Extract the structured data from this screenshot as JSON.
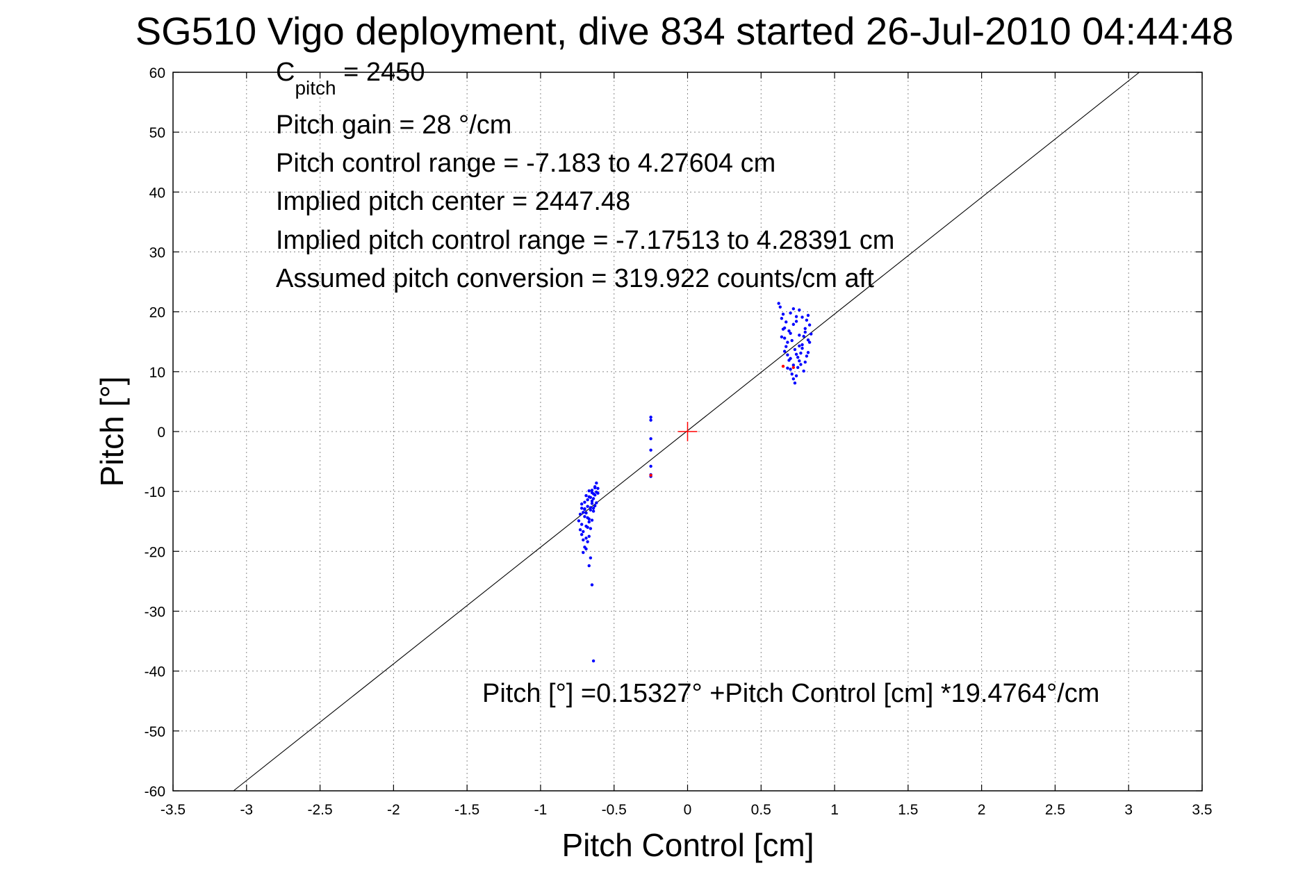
{
  "chart_data": {
    "type": "scatter",
    "title": "SG510 Vigo deployment, dive 834 started 26-Jul-2010 04:44:48",
    "xlabel": "Pitch Control [cm]",
    "ylabel": "Pitch [°]",
    "xlim": [
      -3.5,
      3.5
    ],
    "ylim": [
      -60,
      60
    ],
    "xticks": [
      -3.5,
      -3,
      -2.5,
      -2,
      -1.5,
      -1,
      -0.5,
      0,
      0.5,
      1,
      1.5,
      2,
      2.5,
      3,
      3.5
    ],
    "xtick_labels": [
      "-3.5",
      "-3",
      "-2.5",
      "-2",
      "-1.5",
      "-1",
      "-0.5",
      "0",
      "0.5",
      "1",
      "1.5",
      "2",
      "2.5",
      "3",
      "3.5"
    ],
    "yticks": [
      60,
      50,
      40,
      30,
      20,
      10,
      0,
      -10,
      -20,
      -30,
      -40,
      -50,
      -60
    ],
    "ytick_labels": [
      "60",
      "50",
      "40",
      "30",
      "20",
      "10",
      "0",
      "-10",
      "-20",
      "-30",
      "-40",
      "-50",
      "-60"
    ],
    "grid": true,
    "annotations": {
      "c_pitch_prefix": "C",
      "c_pitch_sub": "pitch",
      "c_pitch_value": " = 2450",
      "lines": [
        "Pitch gain = 28 °/cm",
        "Pitch control range = -7.183 to 4.27604 cm",
        "Implied pitch center = 2447.48",
        "Implied pitch control range = -7.17513 to 4.28391 cm",
        "Assumed pitch conversion = 319.922 counts/cm aft"
      ],
      "fit_equation": "Pitch [°] =0.15327° +Pitch Control [cm] *19.4764°/cm"
    },
    "fit_line": {
      "intercept": 0.15327,
      "slope": 19.4764
    },
    "center_marker": {
      "x": 0,
      "y": 0,
      "color": "#ff0000"
    },
    "series": [
      {
        "color": "#0000ff",
        "marker": "dot",
        "points": [
          [
            -0.72,
            -12.1
          ],
          [
            -0.71,
            -13.5
          ],
          [
            -0.7,
            -14.2
          ],
          [
            -0.69,
            -15.8
          ],
          [
            -0.68,
            -11.4
          ],
          [
            -0.67,
            -10.9
          ],
          [
            -0.66,
            -12.7
          ],
          [
            -0.65,
            -9.8
          ],
          [
            -0.64,
            -10.4
          ],
          [
            -0.63,
            -9.2
          ],
          [
            -0.62,
            -8.6
          ],
          [
            -0.61,
            -9.5
          ],
          [
            -0.73,
            -16.4
          ],
          [
            -0.72,
            -17.2
          ],
          [
            -0.71,
            -18.1
          ],
          [
            -0.7,
            -19.3
          ],
          [
            -0.69,
            -17.8
          ],
          [
            -0.68,
            -16.0
          ],
          [
            -0.67,
            -14.6
          ],
          [
            -0.66,
            -13.1
          ],
          [
            -0.65,
            -12.0
          ],
          [
            -0.64,
            -11.2
          ],
          [
            -0.63,
            -10.6
          ],
          [
            -0.62,
            -10.1
          ],
          [
            -0.74,
            -14.9
          ],
          [
            -0.73,
            -13.8
          ],
          [
            -0.72,
            -15.5
          ],
          [
            -0.71,
            -16.7
          ],
          [
            -0.7,
            -12.9
          ],
          [
            -0.69,
            -13.6
          ],
          [
            -0.68,
            -14.4
          ],
          [
            -0.67,
            -15.1
          ],
          [
            -0.66,
            -16.2
          ],
          [
            -0.65,
            -14.8
          ],
          [
            -0.64,
            -13.3
          ],
          [
            -0.63,
            -12.4
          ],
          [
            -0.71,
            -20.2
          ],
          [
            -0.69,
            -19.6
          ],
          [
            -0.68,
            -18.4
          ],
          [
            -0.67,
            -17.5
          ],
          [
            -0.66,
            -21.1
          ],
          [
            -0.7,
            -11.8
          ],
          [
            -0.69,
            -10.7
          ],
          [
            -0.67,
            -9.9
          ],
          [
            -0.65,
            -11.6
          ],
          [
            -0.64,
            -12.8
          ],
          [
            -0.62,
            -11.9
          ],
          [
            -0.61,
            -10.3
          ],
          [
            -0.72,
            -12.8
          ],
          [
            -0.7,
            -13.0
          ],
          [
            -0.68,
            -12.5
          ],
          [
            -0.66,
            -11.0
          ],
          [
            -0.65,
            -10.2
          ],
          [
            -0.63,
            -9.4
          ],
          [
            -0.67,
            -22.4
          ],
          [
            -0.65,
            -25.6
          ],
          [
            -0.64,
            -38.3
          ],
          [
            -0.25,
            2.4
          ],
          [
            -0.25,
            1.9
          ],
          [
            -0.25,
            -1.2
          ],
          [
            -0.25,
            -3.1
          ],
          [
            -0.25,
            -5.8
          ],
          [
            -0.25,
            -7.2
          ],
          [
            -0.25,
            -7.5
          ],
          [
            0.63,
            20.8
          ],
          [
            0.64,
            18.9
          ],
          [
            0.65,
            17.1
          ],
          [
            0.66,
            15.6
          ],
          [
            0.67,
            14.2
          ],
          [
            0.68,
            12.8
          ],
          [
            0.69,
            11.9
          ],
          [
            0.7,
            10.4
          ],
          [
            0.71,
            9.6
          ],
          [
            0.72,
            8.8
          ],
          [
            0.73,
            8.1
          ],
          [
            0.74,
            9.3
          ],
          [
            0.75,
            10.7
          ],
          [
            0.76,
            11.8
          ],
          [
            0.77,
            13.1
          ],
          [
            0.78,
            14.5
          ],
          [
            0.79,
            15.9
          ],
          [
            0.8,
            17.2
          ],
          [
            0.81,
            18.6
          ],
          [
            0.82,
            19.4
          ],
          [
            0.83,
            17.8
          ],
          [
            0.65,
            19.6
          ],
          [
            0.67,
            18.3
          ],
          [
            0.69,
            16.8
          ],
          [
            0.71,
            15.2
          ],
          [
            0.73,
            13.7
          ],
          [
            0.75,
            12.4
          ],
          [
            0.77,
            11.2
          ],
          [
            0.79,
            10.1
          ],
          [
            0.81,
            12.6
          ],
          [
            0.83,
            14.9
          ],
          [
            0.84,
            16.3
          ],
          [
            0.66,
            13.4
          ],
          [
            0.68,
            14.9
          ],
          [
            0.7,
            16.4
          ],
          [
            0.72,
            17.9
          ],
          [
            0.74,
            19.2
          ],
          [
            0.76,
            20.3
          ],
          [
            0.78,
            19.1
          ],
          [
            0.8,
            16.6
          ],
          [
            0.82,
            15.3
          ],
          [
            0.64,
            15.8
          ],
          [
            0.66,
            17.3
          ],
          [
            0.7,
            19.8
          ],
          [
            0.72,
            20.5
          ],
          [
            0.74,
            18.4
          ],
          [
            0.76,
            16.1
          ],
          [
            0.78,
            13.9
          ],
          [
            0.8,
            11.6
          ],
          [
            0.82,
            13.2
          ],
          [
            0.68,
            10.6
          ],
          [
            0.7,
            12.2
          ],
          [
            0.72,
            11.1
          ],
          [
            0.74,
            12.9
          ],
          [
            0.76,
            14.3
          ],
          [
            0.62,
            21.4
          ]
        ]
      },
      {
        "color": "#ff0000",
        "marker": "dot",
        "points": [
          [
            -0.25,
            -7.3
          ],
          [
            0.65,
            10.9
          ],
          [
            0.72,
            10.7
          ]
        ]
      }
    ]
  }
}
